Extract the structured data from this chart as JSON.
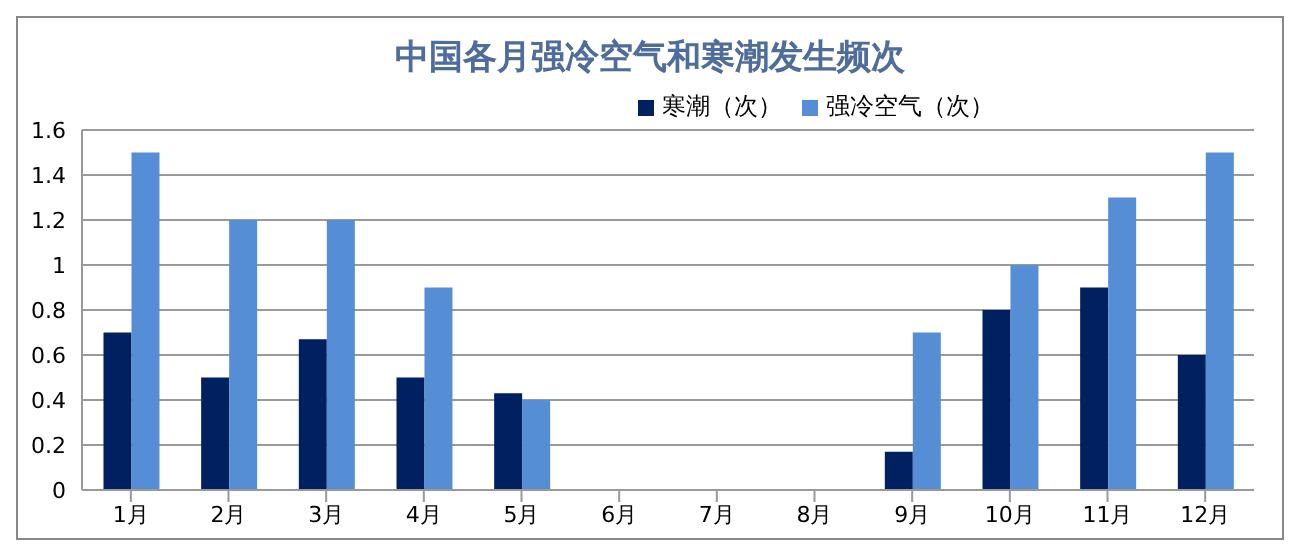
{
  "chart_data": {
    "type": "bar",
    "title": "中国各月强冷空气和寒潮发生频次",
    "categories": [
      "1月",
      "2月",
      "3月",
      "4月",
      "5月",
      "6月",
      "7月",
      "8月",
      "9月",
      "10月",
      "11月",
      "12月"
    ],
    "series": [
      {
        "name": "寒潮（次）",
        "color": "#002060",
        "values": [
          0.7,
          0.5,
          0.67,
          0.5,
          0.43,
          0,
          0,
          0,
          0.17,
          0.8,
          0.9,
          0.6
        ]
      },
      {
        "name": "强冷空气（次）",
        "color": "#558ed5",
        "values": [
          1.5,
          1.2,
          1.2,
          0.9,
          0.4,
          0,
          0,
          0,
          0.7,
          1,
          1.3,
          1.5
        ]
      }
    ],
    "ylim": [
      0,
      1.6
    ],
    "yticks": [
      0,
      0.2,
      0.4,
      0.6,
      0.8,
      1,
      1.2,
      1.4,
      1.6
    ],
    "grid": "y",
    "legend": "top right"
  }
}
